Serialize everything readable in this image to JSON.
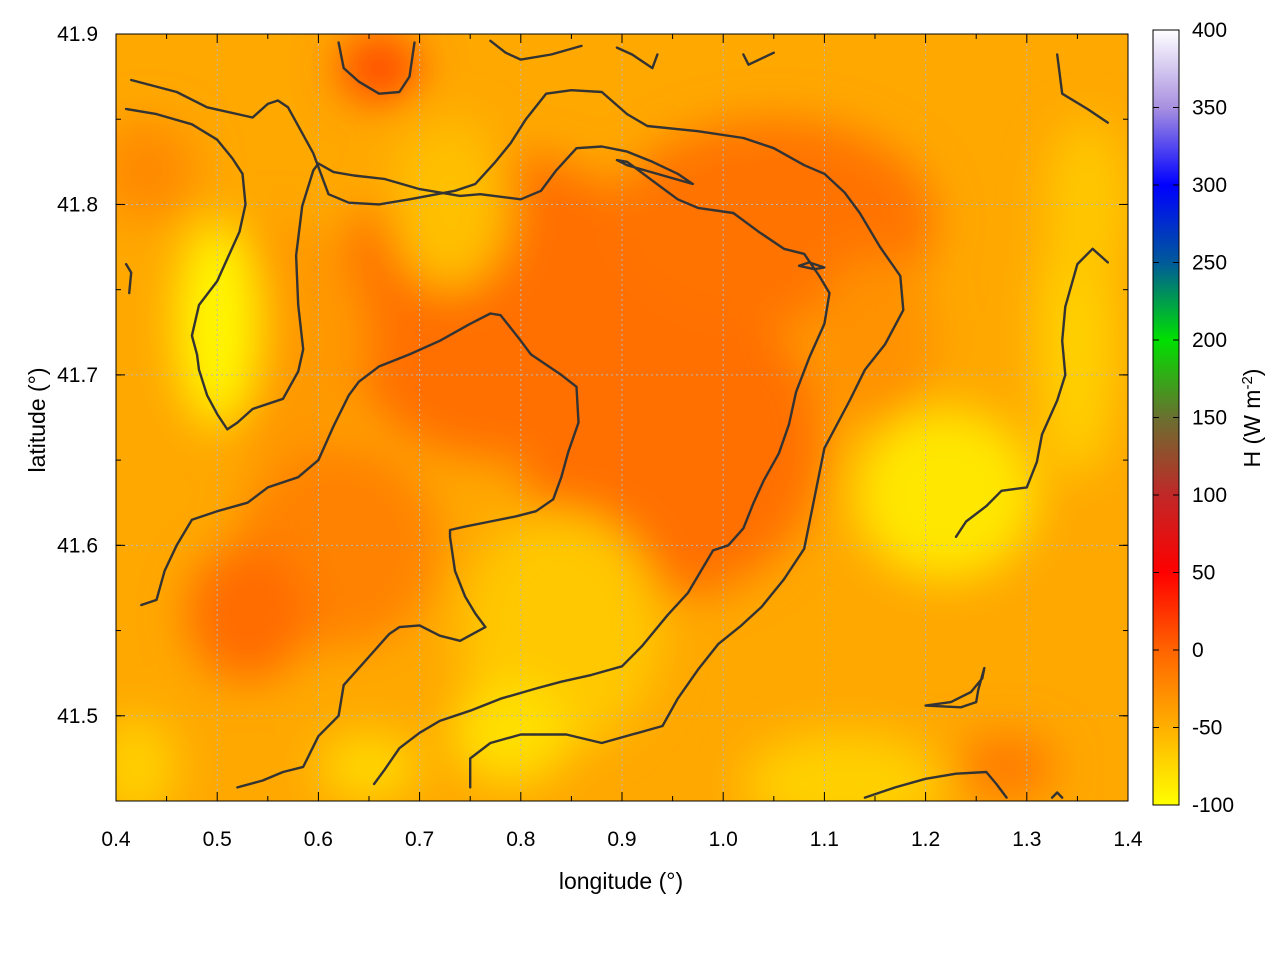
{
  "chart_data": {
    "type": "heatmap",
    "title": "",
    "xlabel": "longitude (°)",
    "ylabel": "latitude (°)",
    "xlim": [
      0.4,
      1.4
    ],
    "ylim": [
      41.45,
      41.9
    ],
    "x_ticks": [
      "0.4",
      "0.5",
      "0.6",
      "0.7",
      "0.8",
      "0.9",
      "1.0",
      "1.1",
      "1.2",
      "1.3",
      "1.4"
    ],
    "y_ticks": [
      "41.5",
      "41.6",
      "41.7",
      "41.8",
      "41.9"
    ],
    "grid": true,
    "colorbar": {
      "label": "H (W m",
      "label_sup": "-2",
      "label_end": ")",
      "range": [
        -100,
        400
      ],
      "ticks": [
        "-100",
        "-50",
        "0",
        "50",
        "100",
        "150",
        "200",
        "250",
        "300",
        "350",
        "400"
      ],
      "stops": [
        {
          "value": -100,
          "color": "#ffff00"
        },
        {
          "value": -50,
          "color": "#ffb000"
        },
        {
          "value": 0,
          "color": "#ff6400"
        },
        {
          "value": 50,
          "color": "#ff0000"
        },
        {
          "value": 100,
          "color": "#c02828"
        },
        {
          "value": 150,
          "color": "#6a7030"
        },
        {
          "value": 200,
          "color": "#00e000"
        },
        {
          "value": 250,
          "color": "#005a9a"
        },
        {
          "value": 300,
          "color": "#0000ff"
        },
        {
          "value": 350,
          "color": "#a890e0"
        },
        {
          "value": 400,
          "color": "#ffffff"
        }
      ]
    },
    "field_blobs": [
      {
        "x": 0.78,
        "y": 41.74,
        "rx": 0.17,
        "ry": 0.09,
        "value": -8
      },
      {
        "x": 0.95,
        "y": 41.66,
        "rx": 0.15,
        "ry": 0.09,
        "value": -8
      },
      {
        "x": 1.05,
        "y": 41.79,
        "rx": 0.16,
        "ry": 0.06,
        "value": -10
      },
      {
        "x": 0.62,
        "y": 41.6,
        "rx": 0.1,
        "ry": 0.06,
        "value": -20
      },
      {
        "x": 0.53,
        "y": 41.56,
        "rx": 0.06,
        "ry": 0.04,
        "value": -5
      },
      {
        "x": 0.66,
        "y": 41.88,
        "rx": 0.04,
        "ry": 0.02,
        "value": 15
      },
      {
        "x": 0.43,
        "y": 41.82,
        "rx": 0.05,
        "ry": 0.03,
        "value": -25
      },
      {
        "x": 0.56,
        "y": 41.72,
        "rx": 0.09,
        "ry": 0.07,
        "value": -35
      },
      {
        "x": 1.28,
        "y": 41.47,
        "rx": 0.05,
        "ry": 0.02,
        "value": -15
      },
      {
        "x": 1.15,
        "y": 41.72,
        "rx": 0.06,
        "ry": 0.05,
        "value": -30
      },
      {
        "x": 0.5,
        "y": 41.73,
        "rx": 0.04,
        "ry": 0.06,
        "value": -95
      },
      {
        "x": 1.22,
        "y": 41.63,
        "rx": 0.09,
        "ry": 0.05,
        "value": -85
      },
      {
        "x": 1.35,
        "y": 41.72,
        "rx": 0.04,
        "ry": 0.08,
        "value": -70
      },
      {
        "x": 1.36,
        "y": 41.8,
        "rx": 0.04,
        "ry": 0.05,
        "value": -65
      },
      {
        "x": 0.73,
        "y": 41.8,
        "rx": 0.06,
        "ry": 0.05,
        "value": -60
      },
      {
        "x": 0.84,
        "y": 41.55,
        "rx": 0.1,
        "ry": 0.07,
        "value": -65
      },
      {
        "x": 0.79,
        "y": 41.49,
        "rx": 0.06,
        "ry": 0.03,
        "value": -80
      },
      {
        "x": 1.12,
        "y": 41.46,
        "rx": 0.1,
        "ry": 0.03,
        "value": -70
      },
      {
        "x": 0.42,
        "y": 41.47,
        "rx": 0.04,
        "ry": 0.03,
        "value": -70
      },
      {
        "x": 0.65,
        "y": 41.47,
        "rx": 0.05,
        "ry": 0.02,
        "value": -75
      }
    ],
    "contours": [
      [
        [
          0.415,
          41.873
        ],
        [
          0.46,
          41.866
        ],
        [
          0.49,
          41.857
        ],
        [
          0.535,
          41.851
        ],
        [
          0.55,
          41.859
        ],
        [
          0.56,
          41.861
        ],
        [
          0.57,
          41.857
        ],
        [
          0.595,
          41.83
        ],
        [
          0.61,
          41.806
        ],
        [
          0.63,
          41.801
        ],
        [
          0.66,
          41.8
        ],
        [
          0.69,
          41.803
        ],
        [
          0.735,
          41.808
        ],
        [
          0.755,
          41.812
        ],
        [
          0.775,
          41.825
        ],
        [
          0.79,
          41.836
        ],
        [
          0.805,
          41.85
        ],
        [
          0.825,
          41.865
        ],
        [
          0.85,
          41.867
        ],
        [
          0.88,
          41.866
        ],
        [
          0.905,
          41.853
        ],
        [
          0.925,
          41.846
        ],
        [
          0.975,
          41.843
        ],
        [
          1.02,
          41.839
        ],
        [
          1.05,
          41.833
        ],
        [
          1.08,
          41.823
        ],
        [
          1.1,
          41.818
        ],
        [
          1.12,
          41.807
        ],
        [
          1.135,
          41.795
        ],
        [
          1.155,
          41.775
        ],
        [
          1.175,
          41.758
        ],
        [
          1.178,
          41.738
        ],
        [
          1.16,
          41.718
        ],
        [
          1.14,
          41.703
        ],
        [
          1.125,
          41.685
        ],
        [
          1.1,
          41.657
        ],
        [
          1.08,
          41.598
        ],
        [
          1.06,
          41.58
        ],
        [
          1.038,
          41.564
        ],
        [
          1.018,
          41.553
        ],
        [
          0.995,
          41.542
        ],
        [
          0.975,
          41.527
        ],
        [
          0.955,
          41.51
        ],
        [
          0.94,
          41.494
        ],
        [
          0.88,
          41.484
        ],
        [
          0.845,
          41.489
        ],
        [
          0.8,
          41.489
        ],
        [
          0.77,
          41.484
        ],
        [
          0.75,
          41.475
        ],
        [
          0.75,
          41.458
        ]
      ],
      [
        [
          0.41,
          41.856
        ],
        [
          0.44,
          41.853
        ],
        [
          0.475,
          41.847
        ],
        [
          0.5,
          41.838
        ],
        [
          0.515,
          41.827
        ],
        [
          0.525,
          41.818
        ],
        [
          0.528,
          41.8
        ],
        [
          0.522,
          41.784
        ],
        [
          0.5,
          41.755
        ],
        [
          0.482,
          41.741
        ],
        [
          0.475,
          41.723
        ],
        [
          0.48,
          41.712
        ],
        [
          0.482,
          41.703
        ],
        [
          0.49,
          41.688
        ],
        [
          0.5,
          41.677
        ],
        [
          0.51,
          41.668
        ],
        [
          0.52,
          41.672
        ],
        [
          0.535,
          41.68
        ],
        [
          0.565,
          41.686
        ],
        [
          0.58,
          41.702
        ],
        [
          0.585,
          41.715
        ],
        [
          0.58,
          41.741
        ],
        [
          0.578,
          41.77
        ],
        [
          0.584,
          41.799
        ],
        [
          0.595,
          41.82
        ],
        [
          0.6,
          41.824
        ],
        [
          0.615,
          41.819
        ],
        [
          0.635,
          41.817
        ],
        [
          0.665,
          41.815
        ],
        [
          0.7,
          41.809
        ],
        [
          0.74,
          41.805
        ],
        [
          0.76,
          41.806
        ],
        [
          0.8,
          41.803
        ],
        [
          0.82,
          41.808
        ],
        [
          0.835,
          41.82
        ],
        [
          0.855,
          41.833
        ],
        [
          0.88,
          41.834
        ],
        [
          0.905,
          41.831
        ],
        [
          0.93,
          41.825
        ],
        [
          0.955,
          41.818
        ],
        [
          0.97,
          41.812
        ],
        [
          0.905,
          41.823
        ],
        [
          0.895,
          41.826
        ],
        [
          0.905,
          41.825
        ],
        [
          0.93,
          41.814
        ],
        [
          0.955,
          41.803
        ],
        [
          0.975,
          41.798
        ],
        [
          1.01,
          41.795
        ],
        [
          1.035,
          41.784
        ],
        [
          1.06,
          41.774
        ],
        [
          1.08,
          41.771
        ],
        [
          1.095,
          41.758
        ],
        [
          1.105,
          41.748
        ],
        [
          1.1,
          41.73
        ],
        [
          1.085,
          41.71
        ],
        [
          1.072,
          41.69
        ],
        [
          1.065,
          41.671
        ],
        [
          1.055,
          41.654
        ],
        [
          1.04,
          41.638
        ],
        [
          1.03,
          41.625
        ],
        [
          1.02,
          41.61
        ],
        [
          1.005,
          41.6
        ],
        [
          0.99,
          41.597
        ],
        [
          0.965,
          41.572
        ],
        [
          0.945,
          41.559
        ],
        [
          0.92,
          41.541
        ],
        [
          0.9,
          41.529
        ],
        [
          0.87,
          41.524
        ],
        [
          0.84,
          41.52
        ],
        [
          0.815,
          41.516
        ],
        [
          0.78,
          41.51
        ],
        [
          0.75,
          41.503
        ],
        [
          0.72,
          41.497
        ],
        [
          0.7,
          41.49
        ],
        [
          0.68,
          41.481
        ],
        [
          0.665,
          41.468
        ],
        [
          0.655,
          41.46
        ]
      ],
      [
        [
          0.425,
          41.565
        ],
        [
          0.44,
          41.568
        ],
        [
          0.448,
          41.585
        ],
        [
          0.46,
          41.6
        ],
        [
          0.475,
          41.615
        ],
        [
          0.5,
          41.62
        ],
        [
          0.53,
          41.625
        ],
        [
          0.55,
          41.634
        ],
        [
          0.58,
          41.64
        ],
        [
          0.6,
          41.65
        ],
        [
          0.615,
          41.67
        ],
        [
          0.63,
          41.688
        ],
        [
          0.64,
          41.696
        ],
        [
          0.66,
          41.705
        ],
        [
          0.69,
          41.712
        ],
        [
          0.72,
          41.72
        ],
        [
          0.75,
          41.73
        ],
        [
          0.77,
          41.736
        ],
        [
          0.78,
          41.735
        ],
        [
          0.8,
          41.72
        ],
        [
          0.81,
          41.712
        ],
        [
          0.84,
          41.7
        ],
        [
          0.855,
          41.693
        ],
        [
          0.857,
          41.672
        ],
        [
          0.847,
          41.655
        ],
        [
          0.84,
          41.64
        ],
        [
          0.832,
          41.627
        ],
        [
          0.815,
          41.62
        ],
        [
          0.795,
          41.617
        ],
        [
          0.77,
          41.614
        ],
        [
          0.745,
          41.611
        ],
        [
          0.73,
          41.609
        ],
        [
          0.73,
          41.605
        ],
        [
          0.735,
          41.585
        ],
        [
          0.745,
          41.57
        ],
        [
          0.755,
          41.56
        ],
        [
          0.765,
          41.552
        ],
        [
          0.74,
          41.544
        ],
        [
          0.72,
          41.547
        ],
        [
          0.7,
          41.553
        ],
        [
          0.68,
          41.552
        ],
        [
          0.67,
          41.548
        ],
        [
          0.655,
          41.538
        ],
        [
          0.64,
          41.528
        ],
        [
          0.625,
          41.518
        ],
        [
          0.62,
          41.5
        ],
        [
          0.6,
          41.488
        ],
        [
          0.585,
          41.47
        ],
        [
          0.565,
          41.467
        ],
        [
          0.545,
          41.462
        ],
        [
          0.52,
          41.458
        ]
      ],
      [
        [
          1.14,
          41.452
        ],
        [
          1.17,
          41.458
        ],
        [
          1.2,
          41.463
        ],
        [
          1.23,
          41.466
        ],
        [
          1.26,
          41.467
        ],
        [
          1.27,
          41.46
        ],
        [
          1.28,
          41.452
        ]
      ],
      [
        [
          1.2,
          41.506
        ],
        [
          1.225,
          41.508
        ],
        [
          1.245,
          41.514
        ],
        [
          1.256,
          41.522
        ],
        [
          1.258,
          41.528
        ],
        [
          1.252,
          41.515
        ],
        [
          1.25,
          41.508
        ],
        [
          1.235,
          41.505
        ],
        [
          1.2,
          41.506
        ]
      ],
      [
        [
          1.075,
          41.764
        ],
        [
          1.09,
          41.762
        ],
        [
          1.1,
          41.763
        ],
        [
          1.085,
          41.766
        ],
        [
          1.075,
          41.764
        ]
      ],
      [
        [
          0.41,
          41.765
        ],
        [
          0.415,
          41.76
        ],
        [
          0.413,
          41.748
        ]
      ],
      [
        [
          1.33,
          41.888
        ],
        [
          1.335,
          41.865
        ],
        [
          1.36,
          41.856
        ],
        [
          1.38,
          41.848
        ]
      ],
      [
        [
          0.62,
          41.895
        ],
        [
          0.625,
          41.88
        ],
        [
          0.64,
          41.872
        ],
        [
          0.66,
          41.865
        ],
        [
          0.68,
          41.866
        ],
        [
          0.69,
          41.875
        ],
        [
          0.695,
          41.895
        ]
      ],
      [
        [
          0.77,
          41.896
        ],
        [
          0.785,
          41.889
        ],
        [
          0.8,
          41.885
        ],
        [
          0.83,
          41.888
        ],
        [
          0.86,
          41.893
        ]
      ],
      [
        [
          0.895,
          41.892
        ],
        [
          0.91,
          41.888
        ],
        [
          0.93,
          41.88
        ],
        [
          0.935,
          41.888
        ]
      ],
      [
        [
          1.02,
          41.888
        ],
        [
          1.025,
          41.882
        ],
        [
          1.05,
          41.889
        ]
      ],
      [
        [
          1.325,
          41.452
        ],
        [
          1.33,
          41.455
        ],
        [
          1.335,
          41.452
        ]
      ],
      [
        [
          1.23,
          41.605
        ],
        [
          1.24,
          41.614
        ],
        [
          1.26,
          41.623
        ],
        [
          1.275,
          41.632
        ],
        [
          1.3,
          41.634
        ],
        [
          1.31,
          41.649
        ],
        [
          1.315,
          41.665
        ],
        [
          1.33,
          41.685
        ],
        [
          1.338,
          41.7
        ],
        [
          1.335,
          41.72
        ],
        [
          1.338,
          41.74
        ],
        [
          1.35,
          41.765
        ],
        [
          1.365,
          41.774
        ],
        [
          1.38,
          41.766
        ]
      ]
    ]
  }
}
